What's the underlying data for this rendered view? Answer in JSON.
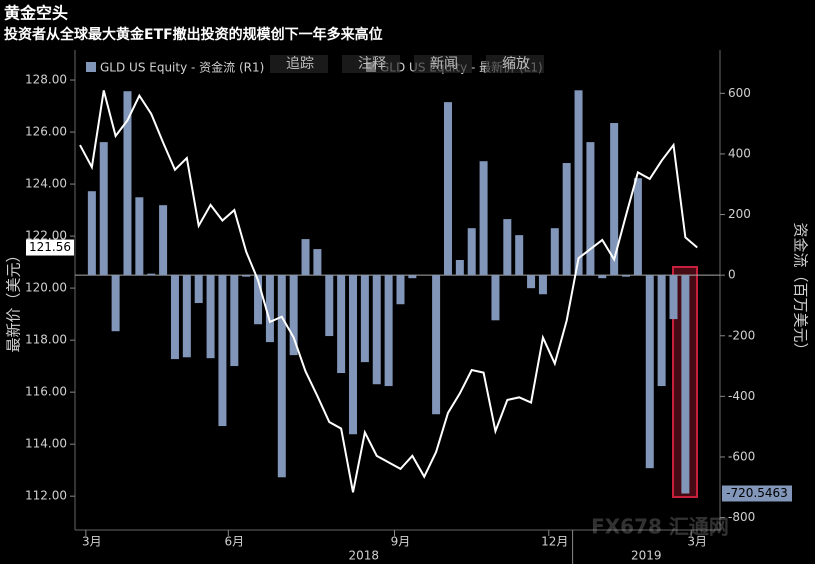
{
  "chart_data": {
    "type": "bar",
    "title": "黄金空头",
    "subtitle": "投资者从全球最大黄金ETF撤出投资的规模创下一年多来高位",
    "y_label": "最新价（美元）",
    "y2_label": "资金流（百万美元）",
    "toolbar": [
      "追踪",
      "注释",
      "新闻",
      "缩放"
    ],
    "watermark": "FX678 汇通网",
    "years": [
      "2018",
      "2019"
    ],
    "categories": [
      null,
      "3月",
      null,
      null,
      null,
      null,
      null,
      null,
      null,
      null,
      null,
      null,
      null,
      "6月",
      null,
      null,
      null,
      null,
      null,
      null,
      null,
      null,
      null,
      null,
      null,
      null,
      null,
      "9月",
      null,
      null,
      null,
      null,
      null,
      null,
      null,
      null,
      null,
      null,
      null,
      null,
      "12月",
      null,
      null,
      null,
      null,
      null,
      null,
      null,
      null,
      null,
      null,
      null,
      "3月"
    ],
    "series": [
      {
        "name": "GLD US Equity - 资金流 (R1)",
        "type": "bar",
        "axis": "y2",
        "color": "#8196b9",
        "values": [
          null,
          277,
          439,
          -185,
          607,
          257,
          5,
          231,
          -277,
          -271,
          -92,
          -274,
          -498,
          -300,
          -5,
          -162,
          -221,
          -667,
          -264,
          119,
          86,
          -201,
          -323,
          -525,
          -287,
          -360,
          -366,
          -96,
          -10,
          null,
          -459,
          571,
          50,
          155,
          376,
          -149,
          185,
          132,
          -43,
          -63,
          155,
          370,
          610,
          439,
          -10,
          502,
          -5,
          320,
          -637,
          -366,
          -145,
          -720.5463,
          null
        ]
      },
      {
        "name": "GLD US Equity - 最新价 (L1)",
        "type": "line",
        "color": "#ffffff",
        "values": [
          125.5,
          124.65,
          127.6,
          125.85,
          126.45,
          127.4,
          126.7,
          125.6,
          124.55,
          125.0,
          122.4,
          123.2,
          122.6,
          123.0,
          121.4,
          120.3,
          118.7,
          118.9,
          118.1,
          116.8,
          115.85,
          114.85,
          114.6,
          112.15,
          114.45,
          113.55,
          113.3,
          113.05,
          113.55,
          112.75,
          113.7,
          115.2,
          115.95,
          116.85,
          116.75,
          114.5,
          115.7,
          115.8,
          115.6,
          118.1,
          117.1,
          118.75,
          121.15,
          121.5,
          121.85,
          121.1,
          122.8,
          124.45,
          124.2,
          124.9,
          125.5,
          121.95,
          121.56
        ]
      }
    ],
    "ylim": [
      110.7,
      128.77
    ],
    "yticks": [
      {
        "value": 112,
        "label": "112.00"
      },
      {
        "value": 114,
        "label": "114.00"
      },
      {
        "value": 116,
        "label": "116.00"
      },
      {
        "value": 118,
        "label": "118.00"
      },
      {
        "value": 120,
        "label": "120.00"
      },
      {
        "value": 122,
        "label": "122.00"
      },
      {
        "value": 124,
        "label": "124.00"
      },
      {
        "value": 126,
        "label": "126.00"
      },
      {
        "value": 128,
        "label": "128.00"
      }
    ],
    "y2lim": [
      -841,
      710
    ],
    "y2ticks": [
      -800,
      -600,
      -400,
      -200,
      0,
      200,
      400,
      600
    ]
  }
}
